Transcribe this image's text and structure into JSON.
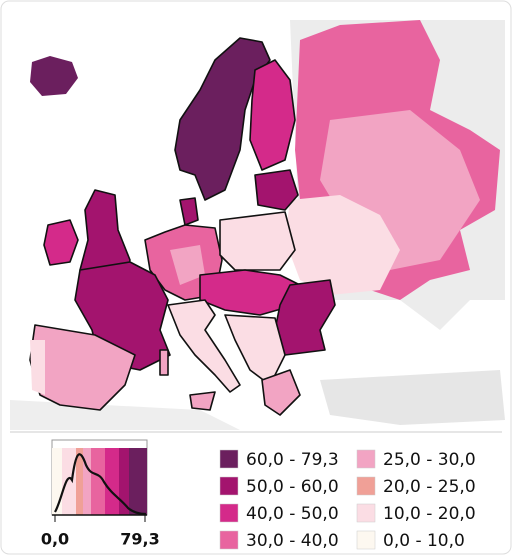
{
  "legend": {
    "items": [
      {
        "label": "60,0 - 79,3",
        "color": "#6b1f5e"
      },
      {
        "label": "50,0 - 60,0",
        "color": "#a3146e"
      },
      {
        "label": "40,0 - 50,0",
        "color": "#d42a8a"
      },
      {
        "label": "30,0 - 40,0",
        "color": "#e8649f"
      },
      {
        "label": "25,0 - 30,0",
        "color": "#f2a4c3"
      },
      {
        "label": "20,0 - 25,0",
        "color": "#f0a097"
      },
      {
        "label": "10,0 - 20,0",
        "color": "#fbdde4"
      },
      {
        "label": "0,0 - 10,0",
        "color": "#fdf8f0"
      }
    ]
  },
  "histogram": {
    "axis_labels": [
      "0,0",
      "79,3"
    ]
  }
}
